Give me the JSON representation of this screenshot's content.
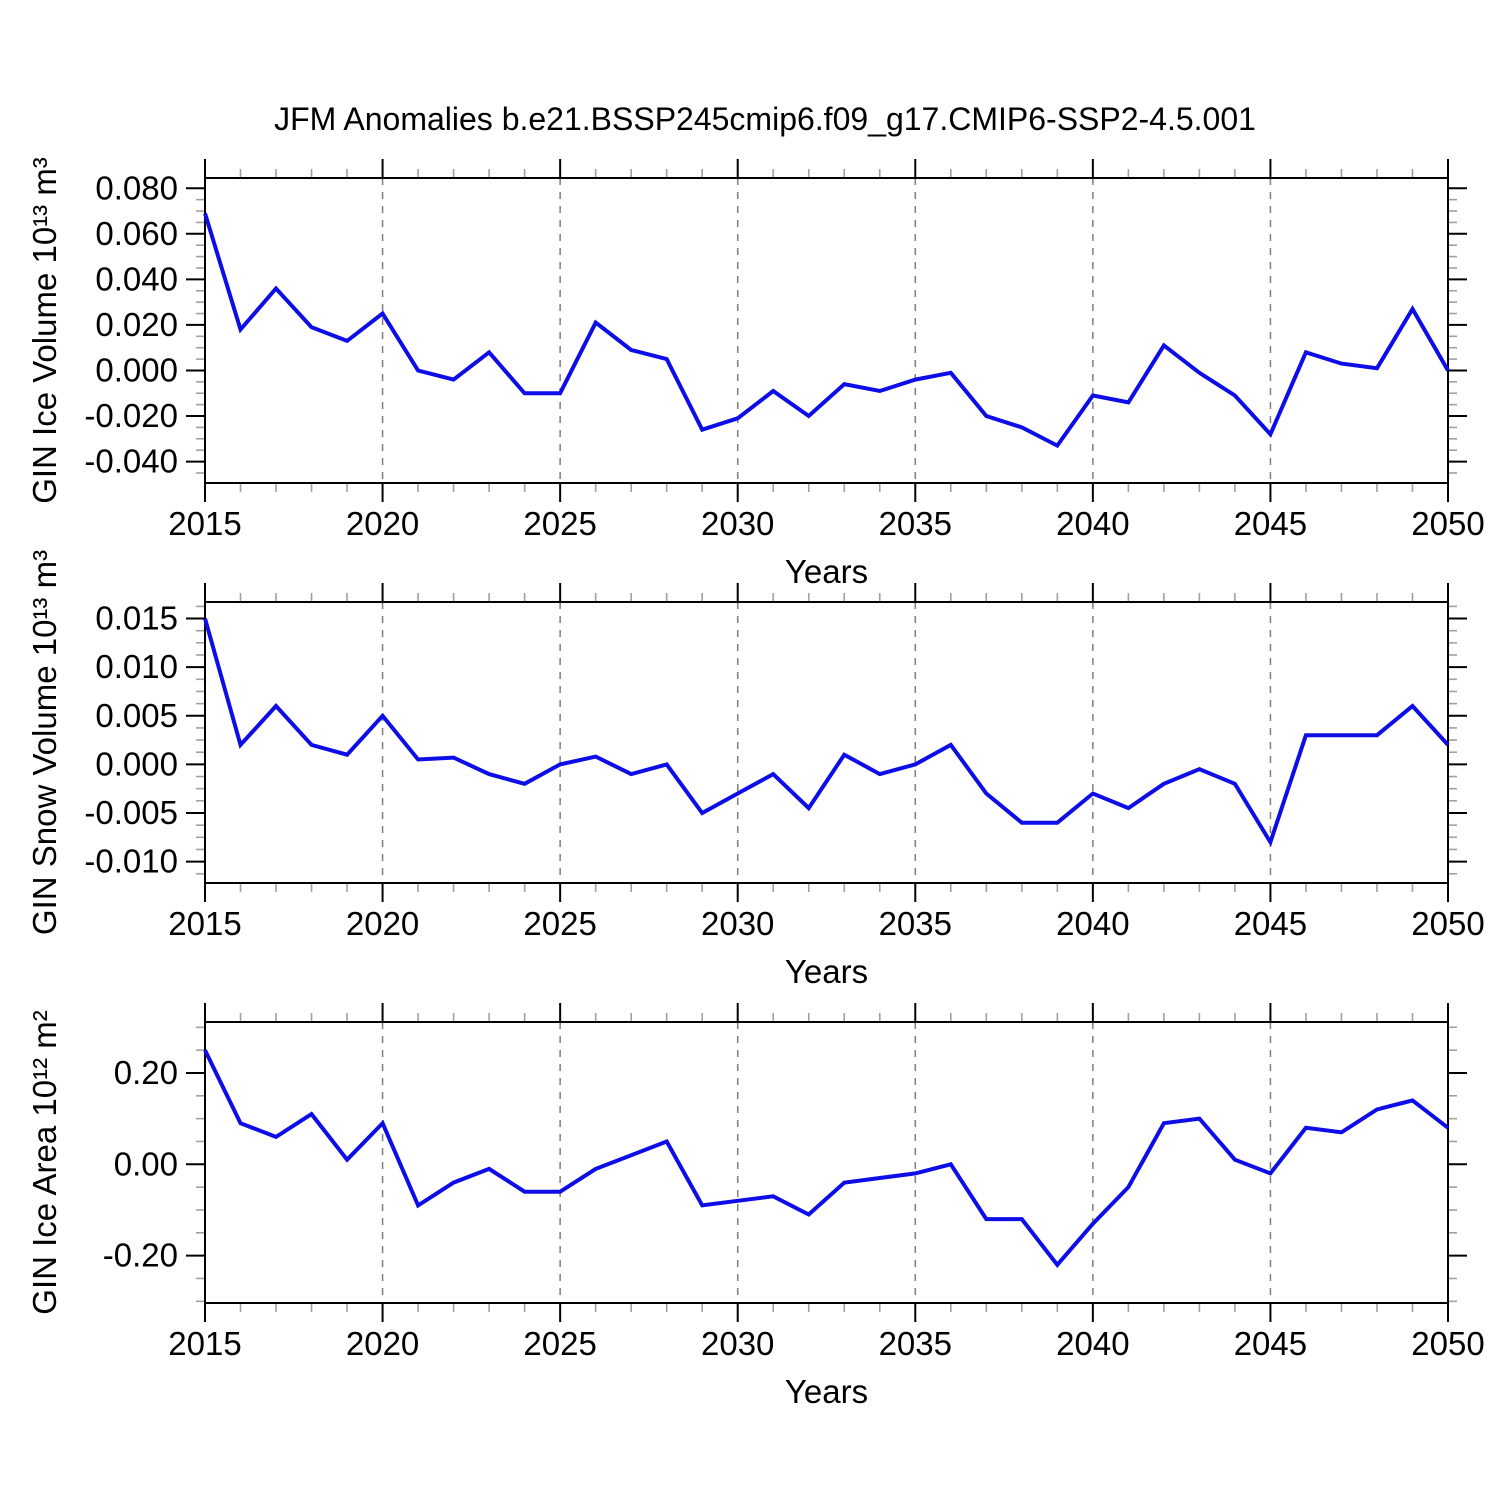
{
  "page": {
    "title": "JFM Anomalies b.e21.BSSP245cmip6.f09_g17.CMIP6-SSP2-4.5.001"
  },
  "style": {
    "line_color": "#0d0de8",
    "axis_color": "#000000",
    "grid_color": "#7e7e7e",
    "minor_tick_color": "#a0a0a0",
    "background": "#ffffff"
  },
  "chart_data": [
    {
      "type": "line",
      "name": "gin-ice-volume",
      "ylabel": "GIN Ice Volume 10¹³ m³",
      "xlabel": "Years",
      "legend": "none",
      "grid": "vertical-dashed",
      "x": [
        2015,
        2016,
        2017,
        2018,
        2019,
        2020,
        2021,
        2022,
        2023,
        2024,
        2025,
        2026,
        2027,
        2028,
        2029,
        2030,
        2031,
        2032,
        2033,
        2034,
        2035,
        2036,
        2037,
        2038,
        2039,
        2040,
        2041,
        2042,
        2043,
        2044,
        2045,
        2046,
        2047,
        2048,
        2049,
        2050
      ],
      "values": [
        0.069,
        0.018,
        0.036,
        0.019,
        0.013,
        0.025,
        0.0,
        -0.004,
        0.008,
        -0.01,
        -0.01,
        0.021,
        0.009,
        0.005,
        -0.026,
        -0.021,
        -0.009,
        -0.02,
        -0.006,
        -0.009,
        -0.004,
        -0.001,
        -0.02,
        -0.025,
        -0.033,
        -0.011,
        -0.014,
        0.011,
        -0.001,
        -0.011,
        -0.028,
        0.008,
        0.003,
        0.001,
        0.027,
        0.0
      ],
      "xlim": [
        2015,
        2050
      ],
      "ylim": [
        -0.0494,
        0.0845
      ],
      "xticks": [
        2015,
        2020,
        2025,
        2030,
        2035,
        2040,
        2045,
        2050
      ],
      "xtick_labels": [
        "2015",
        "2020",
        "2025",
        "2030",
        "2035",
        "2040",
        "2045",
        "2050"
      ],
      "xminor_step": 1,
      "yticks": [
        0.08,
        0.06,
        0.04,
        0.02,
        0,
        -0.02,
        -0.04
      ],
      "ytick_labels": [
        "0.080",
        "0.060",
        "0.040",
        "0.020",
        "0.000",
        "-0.020",
        "-0.040"
      ],
      "yminor_step": 0.005,
      "gridlines_x": [
        2020,
        2025,
        2030,
        2035,
        2040,
        2045
      ]
    },
    {
      "type": "line",
      "name": "gin-snow-volume",
      "ylabel": "GIN Snow Volume 10¹³ m³",
      "xlabel": "Years",
      "legend": "none",
      "grid": "vertical-dashed",
      "x": [
        2015,
        2016,
        2017,
        2018,
        2019,
        2020,
        2021,
        2022,
        2023,
        2024,
        2025,
        2026,
        2027,
        2028,
        2029,
        2030,
        2031,
        2032,
        2033,
        2034,
        2035,
        2036,
        2037,
        2038,
        2039,
        2040,
        2041,
        2042,
        2043,
        2044,
        2045,
        2046,
        2047,
        2048,
        2049,
        2050
      ],
      "values": [
        0.015,
        0.002,
        0.006,
        0.002,
        0.001,
        0.005,
        0.0005,
        0.0007,
        -0.001,
        -0.002,
        0.0,
        0.0008,
        -0.001,
        0.0,
        -0.005,
        -0.003,
        -0.001,
        -0.0045,
        0.001,
        -0.001,
        0.0,
        0.002,
        -0.003,
        -0.006,
        -0.006,
        -0.003,
        -0.0045,
        -0.002,
        -0.0005,
        -0.002,
        -0.008,
        0.003,
        0.003,
        0.003,
        0.006,
        0.002
      ],
      "xlim": [
        2015,
        2050
      ],
      "ylim": [
        -0.0122,
        0.0167
      ],
      "xticks": [
        2015,
        2020,
        2025,
        2030,
        2035,
        2040,
        2045,
        2050
      ],
      "xtick_labels": [
        "2015",
        "2020",
        "2025",
        "2030",
        "2035",
        "2040",
        "2045",
        "2050"
      ],
      "xminor_step": 1,
      "yticks": [
        0.015,
        0.01,
        0.005,
        0,
        -0.005,
        -0.01
      ],
      "ytick_labels": [
        "0.015",
        "0.010",
        "0.005",
        "0.000",
        "-0.005",
        "-0.010"
      ],
      "yminor_step": 0.00125,
      "gridlines_x": [
        2020,
        2025,
        2030,
        2035,
        2040,
        2045
      ]
    },
    {
      "type": "line",
      "name": "gin-ice-area",
      "ylabel": "GIN Ice Area 10¹² m²",
      "xlabel": "Years",
      "legend": "none",
      "grid": "vertical-dashed",
      "x": [
        2015,
        2016,
        2017,
        2018,
        2019,
        2020,
        2021,
        2022,
        2023,
        2024,
        2025,
        2026,
        2027,
        2028,
        2029,
        2030,
        2031,
        2032,
        2033,
        2034,
        2035,
        2036,
        2037,
        2038,
        2039,
        2040,
        2041,
        2042,
        2043,
        2044,
        2045,
        2046,
        2047,
        2048,
        2049,
        2050
      ],
      "values": [
        0.25,
        0.09,
        0.06,
        0.11,
        0.01,
        0.09,
        -0.09,
        -0.04,
        -0.01,
        -0.06,
        -0.06,
        -0.01,
        0.02,
        0.05,
        -0.09,
        -0.08,
        -0.07,
        -0.11,
        -0.04,
        -0.03,
        -0.02,
        0.0,
        -0.12,
        -0.12,
        -0.22,
        -0.13,
        -0.05,
        0.09,
        0.1,
        0.01,
        -0.02,
        0.08,
        0.07,
        0.12,
        0.14,
        0.08
      ],
      "xlim": [
        2015,
        2050
      ],
      "ylim": [
        -0.3037,
        0.3116
      ],
      "xticks": [
        2015,
        2020,
        2025,
        2030,
        2035,
        2040,
        2045,
        2050
      ],
      "xtick_labels": [
        "2015",
        "2020",
        "2025",
        "2030",
        "2035",
        "2040",
        "2045",
        "2050"
      ],
      "xminor_step": 1,
      "yticks": [
        0.2,
        0,
        -0.2
      ],
      "ytick_labels": [
        "0.20",
        "0.00",
        "-0.20"
      ],
      "yminor_step": 0.05,
      "gridlines_x": [
        2020,
        2025,
        2030,
        2035,
        2040,
        2045
      ]
    }
  ]
}
